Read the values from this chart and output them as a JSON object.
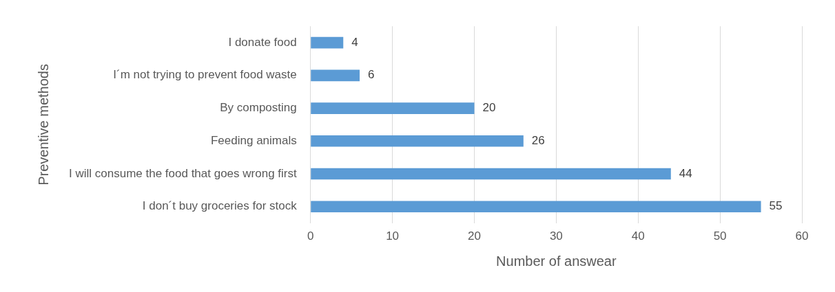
{
  "chart_data": {
    "type": "bar",
    "orientation": "horizontal",
    "xlabel": "Number of answear",
    "ylabel": "Preventive methods",
    "categories": [
      "I donate food",
      "I´m not trying to prevent food waste",
      "By composting",
      "Feeding animals",
      "I will consume the food that goes wrong first",
      "I don´t buy groceries for stock"
    ],
    "values": [
      4,
      6,
      20,
      26,
      44,
      55
    ],
    "color": "#5b9bd5",
    "xlim": [
      0,
      60
    ],
    "xticks": [
      0,
      10,
      20,
      30,
      40,
      50,
      60
    ],
    "grid": "x",
    "data_labels": true
  }
}
